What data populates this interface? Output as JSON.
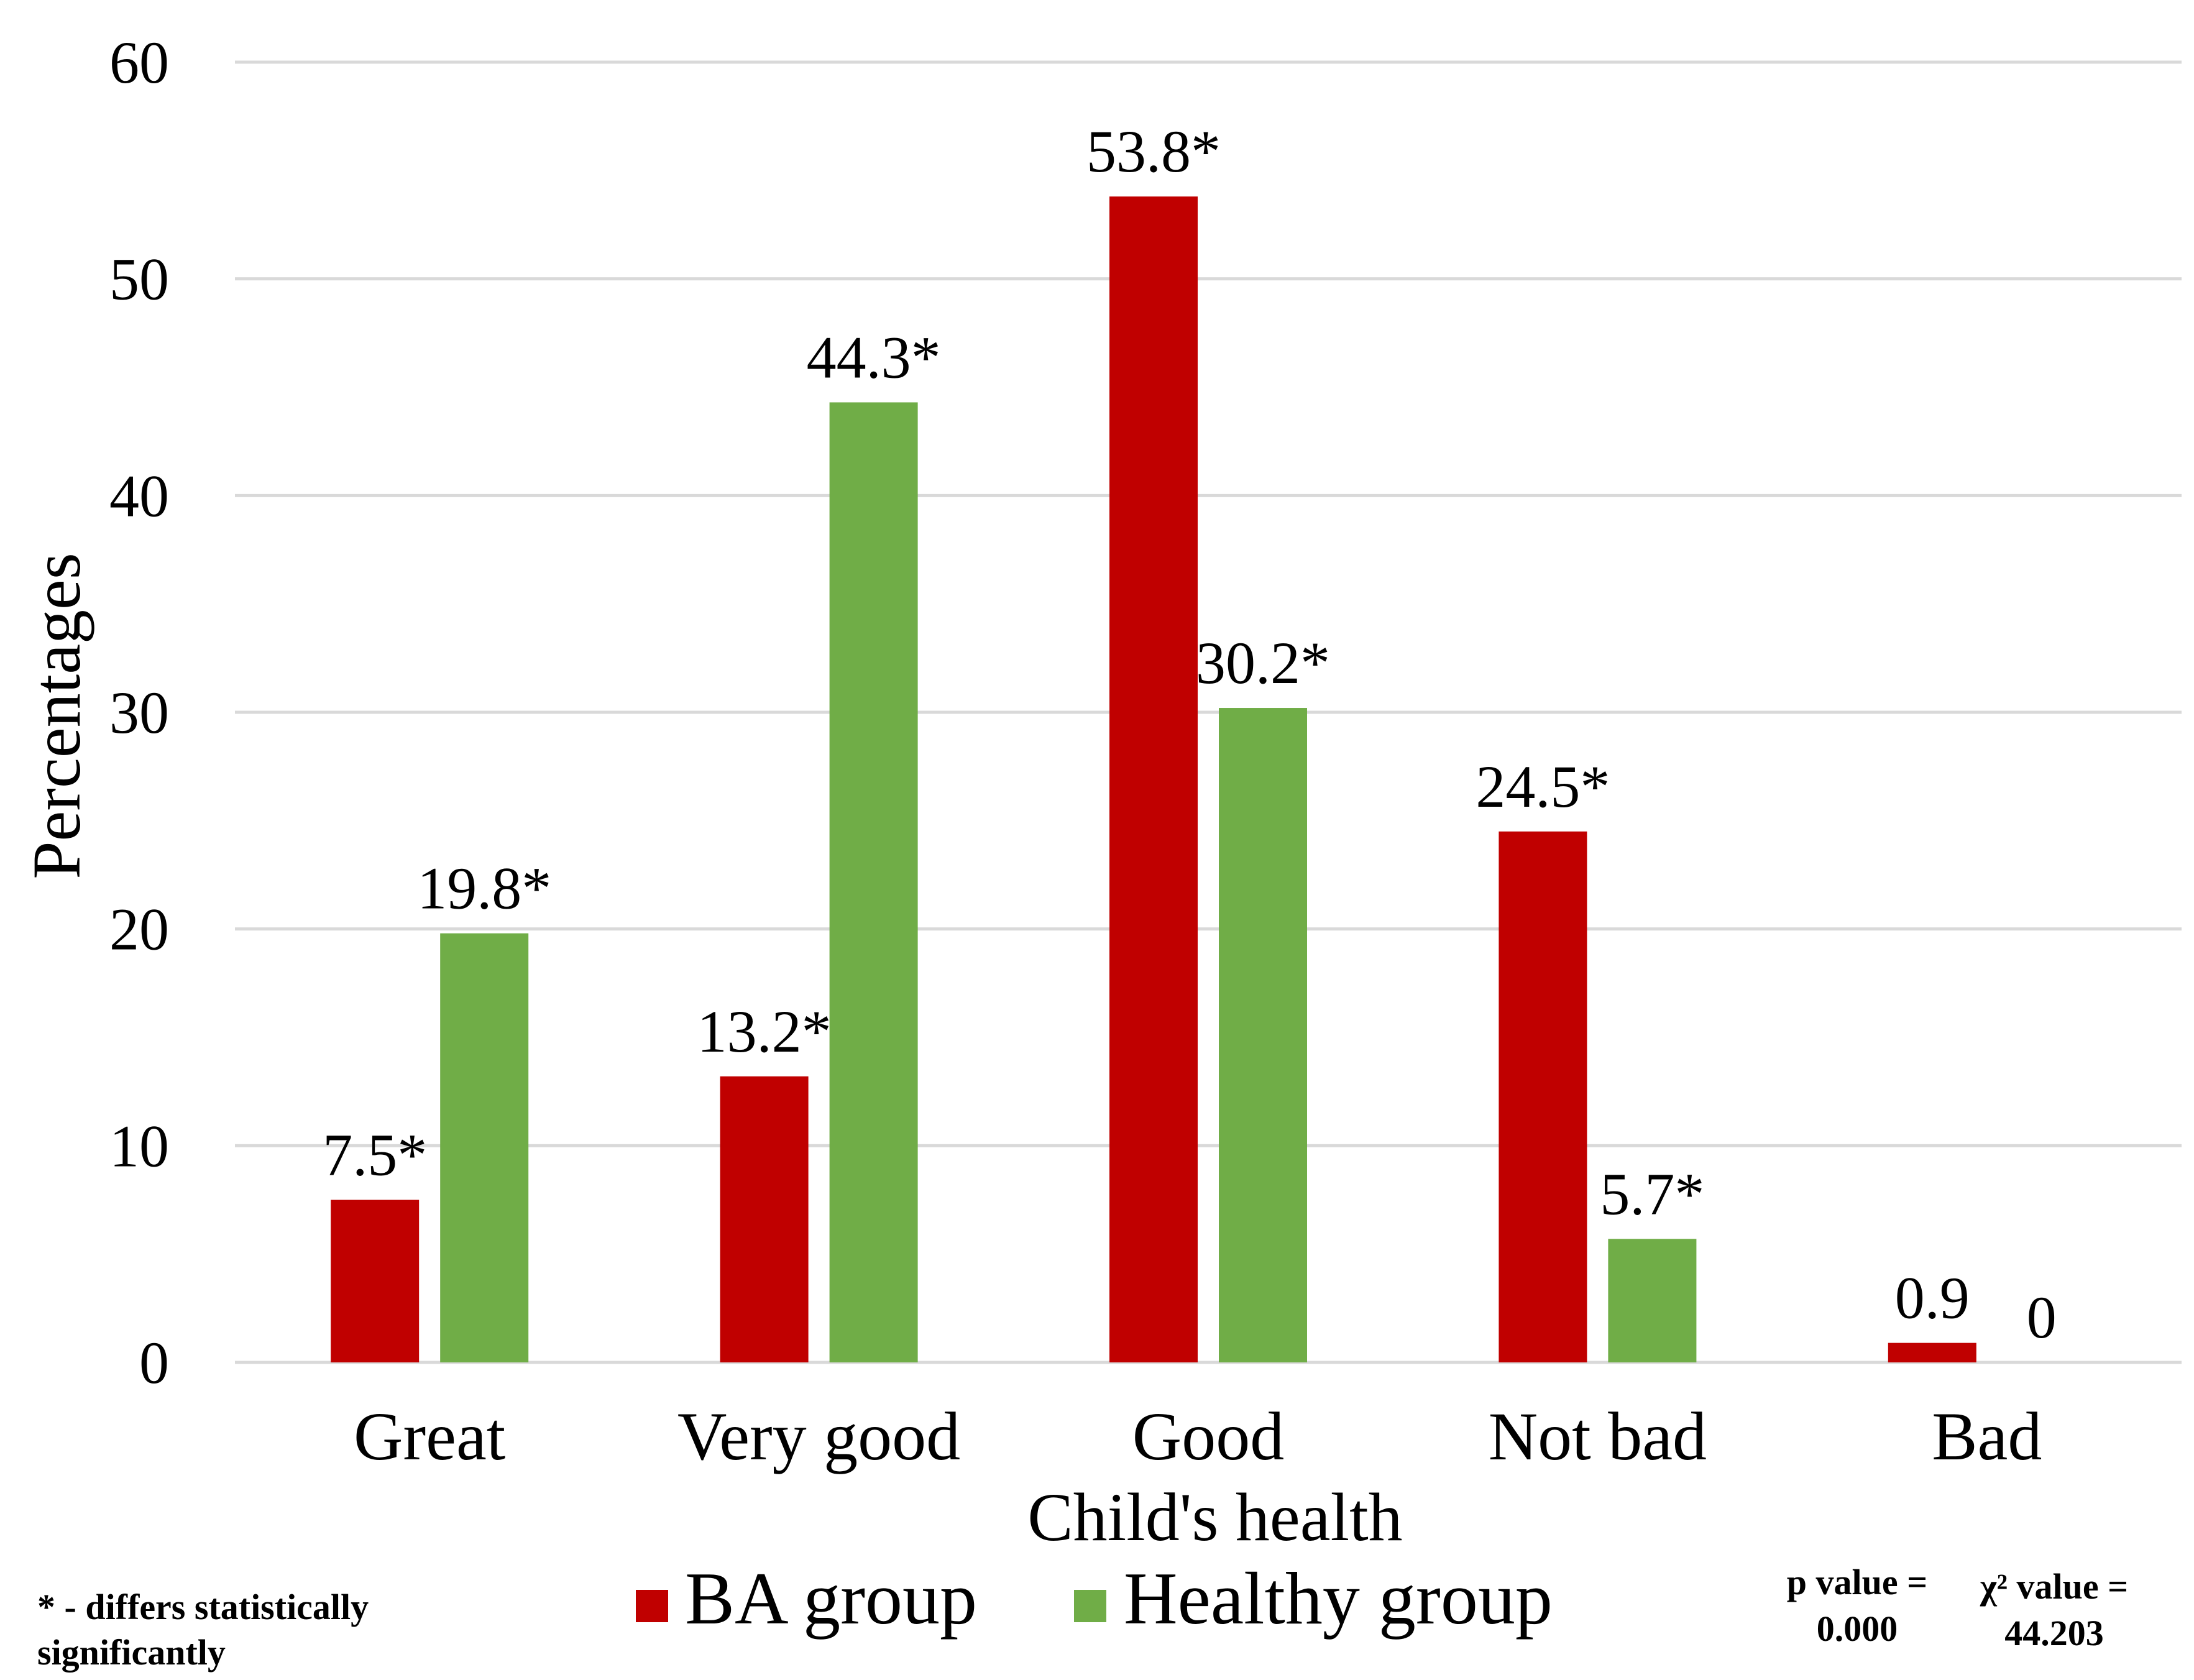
{
  "chart_data": {
    "type": "bar",
    "categories": [
      "Great",
      "Very good",
      "Good",
      "Not bad",
      "Bad"
    ],
    "series": [
      {
        "name": "BA group",
        "color": "#c00000",
        "values": [
          7.5,
          13.2,
          53.8,
          24.5,
          0.9
        ],
        "labels": [
          "7.5*",
          "13.2*",
          "53.8*",
          "24.5*",
          "0.9"
        ]
      },
      {
        "name": "Healthy group",
        "color": "#70ad47",
        "values": [
          19.8,
          44.3,
          30.2,
          5.7,
          0
        ],
        "labels": [
          "19.8*",
          "44.3*",
          "30.2*",
          "5.7*",
          "0"
        ]
      }
    ],
    "xlabel": "Child's health",
    "ylabel": "Percentages",
    "ylim": [
      0,
      60
    ],
    "yticks": [
      "0",
      "10",
      "20",
      "30",
      "40",
      "50",
      "60"
    ],
    "grid": true,
    "gridColor": "#d9d9d9",
    "legend_position": "bottom"
  },
  "notes": {
    "significance_line1": "* - differs statistically",
    "significance_line2": "significantly",
    "p_value_line1": "p value =",
    "p_value_line2": "0.000",
    "chi_value_line1": "χ² value =",
    "chi_value_line2": "44.203"
  }
}
